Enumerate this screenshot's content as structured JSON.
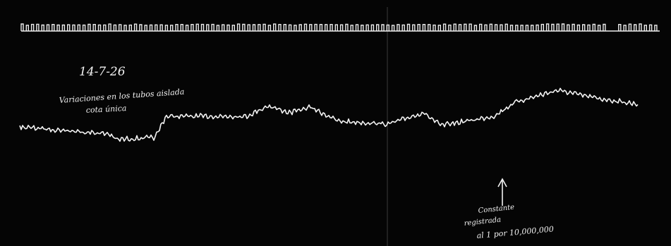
{
  "header": {
    "date": "14-7-26"
  },
  "notes": [
    "Variaciones en los tubos aislada",
    "cota única"
  ],
  "annotation": [
    "Constante",
    "registrada",
    "al 1 por 10,000,000"
  ]
}
